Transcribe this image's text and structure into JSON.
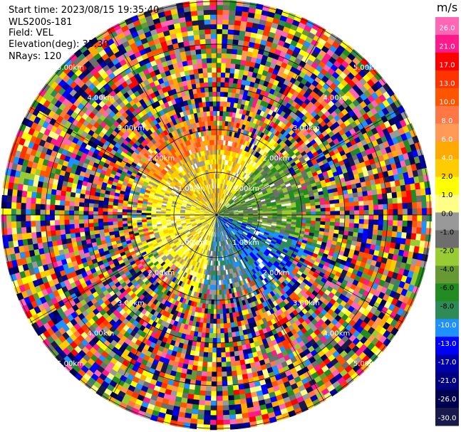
{
  "info": {
    "start_time": "Start time: 2023/08/15 19:35:40",
    "instrument": "WLS200s-181",
    "field": "Field: VEL",
    "elevation": "Elevation(deg): 35.30",
    "nrays": "NRays: 120"
  },
  "chart_data": {
    "type": "heatmap",
    "projection": "polar PPI",
    "field": "VEL",
    "units": "m/s",
    "n_rays": 120,
    "range_ring_labels": [
      "1.00km",
      "2.00km",
      "3.00km",
      "4.00km",
      "5.00km"
    ],
    "colorbar": {
      "unit": "m/s",
      "ticks": [
        "26.0",
        "21.0",
        "17.0",
        "13.0",
        "10.0",
        "8.0",
        "6.0",
        "4.0",
        "2.0",
        "1.0",
        "0.0",
        "-1.0",
        "-2.0",
        "-4.0",
        "-6.0",
        "-8.0",
        "-10.0",
        "-13.0",
        "-17.0",
        "-21.0",
        "-26.0",
        "-30.0"
      ],
      "colors": [
        "#ff66b3",
        "#ff1a8c",
        "#ff0000",
        "#ff3300",
        "#ff5500",
        "#ff7744",
        "#ff9955",
        "#ffaa00",
        "#ffcc00",
        "#ffff00",
        "#ffff88",
        "#999999",
        "#6e6e6e",
        "#99cc33",
        "#669933",
        "#228b22",
        "#2e8b57",
        "#1e90ff",
        "#0000ff",
        "#0000aa",
        "#000080",
        "#000050",
        "#1a1a4a"
      ]
    }
  }
}
